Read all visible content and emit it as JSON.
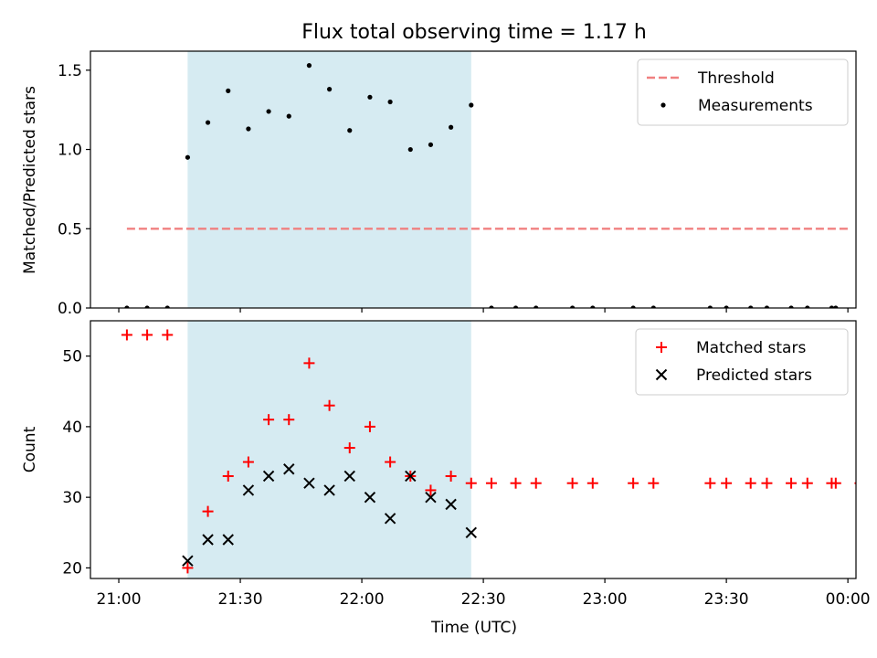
{
  "chart_data": {
    "title": "Flux total observing time = 1.17 h",
    "xlabel": "Time (UTC)",
    "x_ticks": [
      "21:00",
      "21:30",
      "22:00",
      "22:30",
      "23:00",
      "23:30",
      "00:00"
    ],
    "x_tick_minutes": [
      0,
      30,
      60,
      90,
      120,
      150,
      180
    ],
    "xlim_minutes": [
      -7,
      182
    ],
    "highlight_span_minutes": [
      17,
      87
    ],
    "colors": {
      "span": "#add8e6",
      "threshold": "#f08080",
      "measurements": "#000000",
      "matched": "#ff0000",
      "predicted": "#000000"
    },
    "panels": [
      {
        "type": "scatter",
        "ylabel": "Matched/Predicted stars",
        "ylim": [
          0,
          1.62
        ],
        "y_ticks": [
          0.0,
          0.5,
          1.0,
          1.5
        ],
        "y_tick_labels": [
          "0.0",
          "0.5",
          "1.0",
          "1.5"
        ],
        "legend_position": "top-right",
        "threshold": {
          "name": "Threshold",
          "value": 0.5,
          "x_range_minutes": [
            2,
            180
          ]
        },
        "series": [
          {
            "name": "Measurements",
            "x_minutes": [
              2,
              7,
              12,
              17,
              22,
              27,
              32,
              37,
              42,
              47,
              52,
              57,
              62,
              67,
              72,
              77,
              82,
              87,
              92,
              98,
              103,
              112,
              117,
              127,
              132,
              146,
              150,
              156,
              160,
              166,
              170,
              176,
              177,
              183
            ],
            "y": [
              0,
              0,
              0,
              0.95,
              1.17,
              1.37,
              1.13,
              1.24,
              1.21,
              1.53,
              1.38,
              1.12,
              1.33,
              1.3,
              1.0,
              1.03,
              1.14,
              1.28,
              0,
              0,
              0,
              0,
              0,
              0,
              0,
              0,
              0,
              0,
              0,
              0,
              0,
              0,
              0,
              0
            ]
          }
        ]
      },
      {
        "type": "scatter",
        "ylabel": "Count",
        "ylim": [
          18.5,
          55
        ],
        "y_ticks": [
          20,
          30,
          40,
          50
        ],
        "y_tick_labels": [
          "20",
          "30",
          "40",
          "50"
        ],
        "legend_position": "top-right",
        "series": [
          {
            "name": "Matched stars",
            "marker": "+",
            "x_minutes": [
              2,
              7,
              12,
              17,
              22,
              27,
              32,
              37,
              42,
              47,
              52,
              57,
              62,
              67,
              72,
              77,
              82,
              87,
              92,
              98,
              103,
              112,
              117,
              127,
              132,
              146,
              150,
              156,
              160,
              166,
              170,
              176,
              177,
              183
            ],
            "y": [
              53,
              53,
              53,
              20,
              28,
              33,
              35,
              41,
              41,
              49,
              43,
              37,
              40,
              35,
              33,
              31,
              33,
              32,
              32,
              32,
              32,
              32,
              32,
              32,
              32,
              32,
              32,
              32,
              32,
              32,
              32,
              32,
              32,
              32
            ]
          },
          {
            "name": "Predicted stars",
            "marker": "x",
            "x_minutes": [
              17,
              22,
              27,
              32,
              37,
              42,
              47,
              52,
              57,
              62,
              67,
              72,
              77,
              82,
              87
            ],
            "y": [
              21,
              24,
              24,
              31,
              33,
              34,
              32,
              31,
              33,
              30,
              27,
              33,
              30,
              29,
              25
            ]
          }
        ]
      }
    ]
  }
}
